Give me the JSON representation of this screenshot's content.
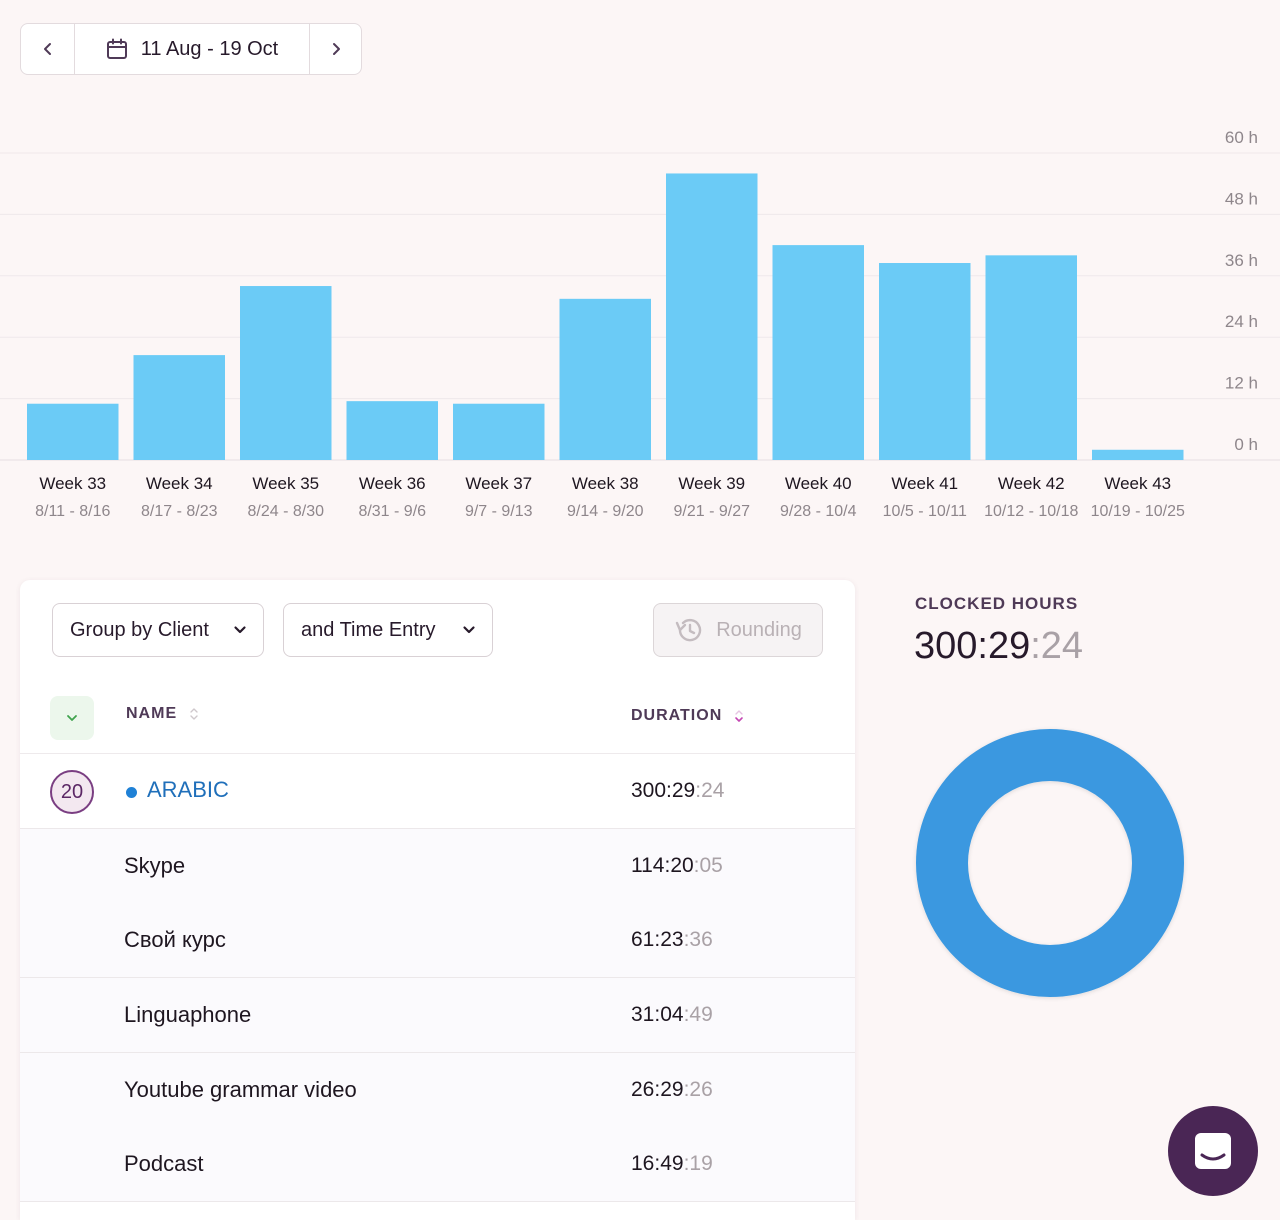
{
  "date_nav": {
    "range_label": "11 Aug - 19 Oct",
    "prev_icon": "chevron-left-icon",
    "next_icon": "chevron-right-icon",
    "calendar_icon": "calendar-icon"
  },
  "chart_data": {
    "type": "bar",
    "categories": [
      "Week 33",
      "Week 34",
      "Week 35",
      "Week 36",
      "Week 37",
      "Week 38",
      "Week 39",
      "Week 40",
      "Week 41",
      "Week 42",
      "Week 43"
    ],
    "date_ranges": [
      "8/11 - 8/16",
      "8/17 - 8/23",
      "8/24 - 8/30",
      "8/31 - 9/6",
      "9/7 - 9/13",
      "9/14 - 9/20",
      "9/21 - 9/27",
      "9/28 - 10/4",
      "10/5 - 10/11",
      "10/12 - 10/18",
      "10/19 - 10/25"
    ],
    "values": [
      11,
      20.5,
      34,
      11.5,
      11,
      31.5,
      56,
      42,
      38.5,
      40,
      2
    ],
    "y_ticks": [
      "60 h",
      "48 h",
      "36 h",
      "24 h",
      "12 h",
      "0 h"
    ],
    "y_tick_values": [
      60,
      48,
      36,
      24,
      12,
      0
    ],
    "ylim": [
      0,
      60
    ],
    "grid": true,
    "bar_color": "#6bcbf6"
  },
  "toolbar": {
    "group_by_label": "Group by Client",
    "then_label": "and Time Entry",
    "rounding_label": "Rounding"
  },
  "table": {
    "headers": {
      "name": "NAME",
      "duration": "DURATION"
    },
    "client": {
      "count": "20",
      "name": "ARABIC",
      "dur_main": "300:29",
      "dur_sec": ":24",
      "color": "#1f81d6"
    },
    "entries": [
      {
        "name": "Skype",
        "dur_main": "114:20",
        "dur_sec": ":05"
      },
      {
        "name": "Свой курс",
        "dur_main": "61:23",
        "dur_sec": ":36"
      },
      {
        "name": "Linguaphone",
        "dur_main": "31:04",
        "dur_sec": ":49"
      },
      {
        "name": "Youtube grammar video",
        "dur_main": "26:29",
        "dur_sec": ":26"
      },
      {
        "name": "Podcast",
        "dur_main": "16:49",
        "dur_sec": ":19"
      }
    ]
  },
  "summary": {
    "label": "CLOCKED HOURS",
    "value_main": "300:29",
    "value_sec": ":24",
    "donut_color": "#3a98e0"
  },
  "chat": {
    "icon": "chat-icon"
  }
}
